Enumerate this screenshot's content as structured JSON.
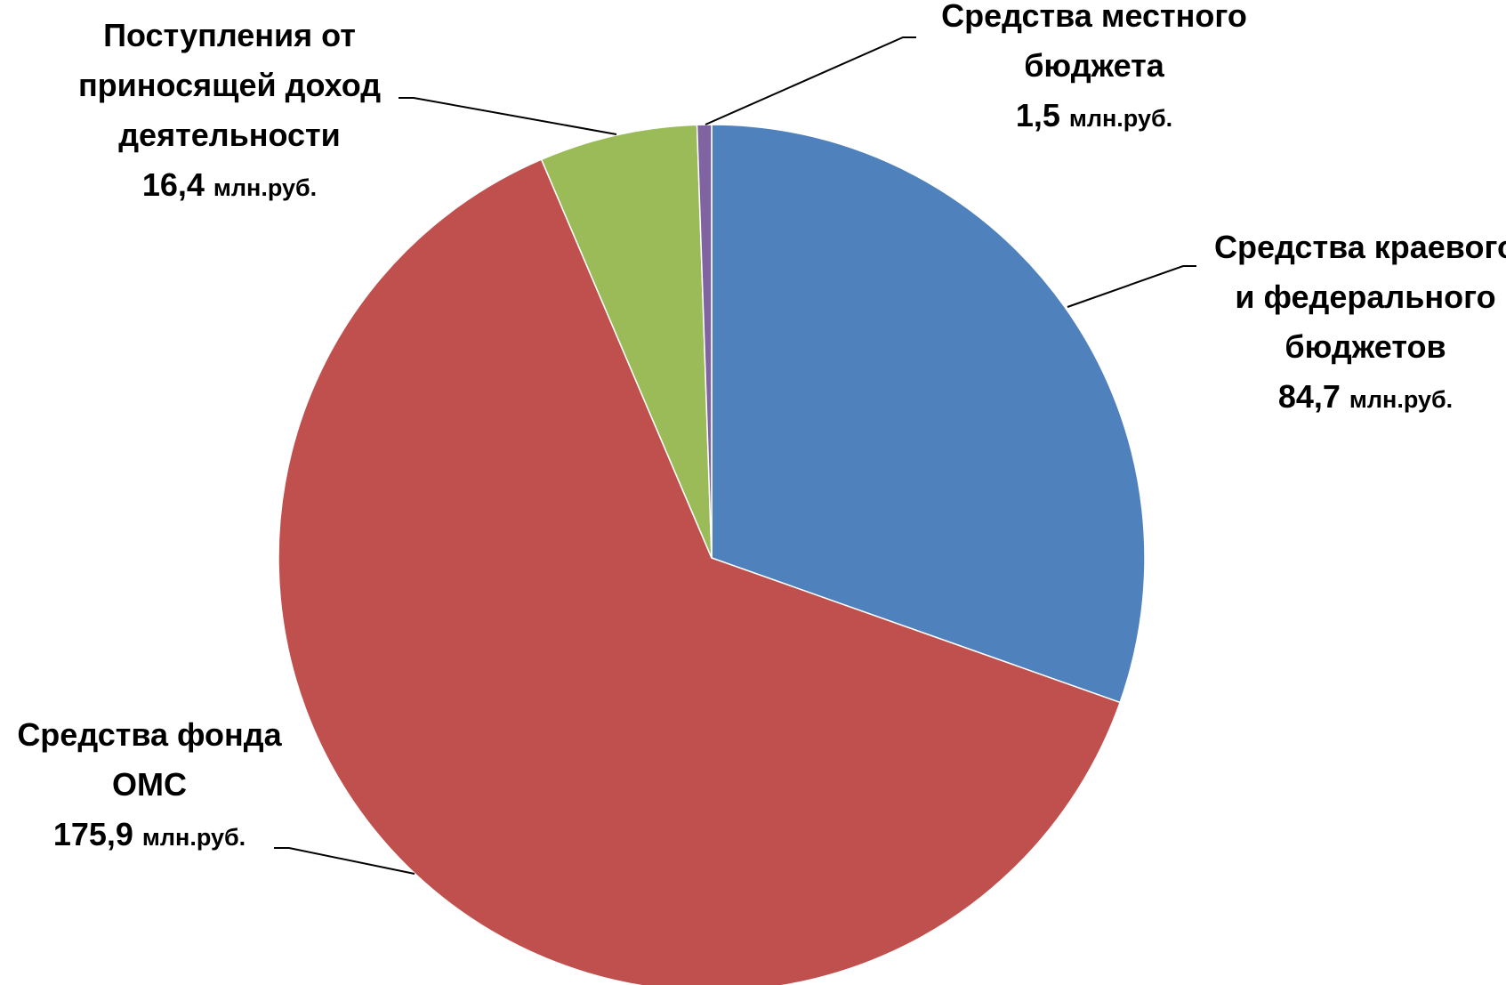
{
  "chart_data": {
    "type": "pie",
    "title": "",
    "start_angle_deg": 0,
    "direction": "clockwise",
    "unit": "млн.руб.",
    "slices": [
      {
        "name": "Средства краевого и федерального бюджетов",
        "label_lines": [
          "Средства краевого",
          "и федерального",
          "бюджетов"
        ],
        "value": 84.7,
        "value_text": "84,7",
        "color": "#4F81BD"
      },
      {
        "name": "Средства фонда ОМС",
        "label_lines": [
          "Средства фонда",
          "ОМС"
        ],
        "value": 175.9,
        "value_text": "175,9",
        "color": "#C0504D"
      },
      {
        "name": "Поступления от приносящей доход деятельности",
        "label_lines": [
          "Поступления от",
          "приносящей доход",
          "деятельности"
        ],
        "value": 16.4,
        "value_text": "16,4",
        "color": "#9BBB59"
      },
      {
        "name": "Средства местного бюджета",
        "label_lines": [
          "Средства местного",
          "бюджета"
        ],
        "value": 1.5,
        "value_text": "1,5",
        "color": "#8064A2"
      }
    ]
  }
}
